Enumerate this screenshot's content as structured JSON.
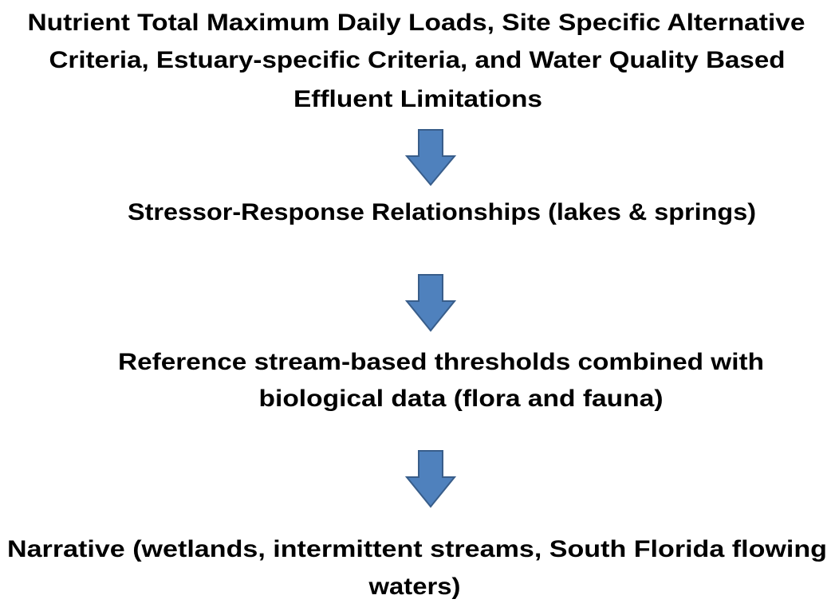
{
  "nodes": [
    {
      "lines": [
        "Nutrient Total Maximum Daily Loads, Site Specific Alternative",
        "Criteria, Estuary-specific Criteria, and Water Quality Based",
        "Effluent Limitations"
      ]
    },
    {
      "lines": [
        "Stressor-Response Relationships (lakes & springs)"
      ]
    },
    {
      "lines": [
        "Reference stream-based thresholds combined with",
        "biological data (flora and fauna)"
      ]
    },
    {
      "lines": [
        "Narrative (wetlands, intermittent streams,  South Florida flowing",
        "waters)"
      ]
    }
  ]
}
